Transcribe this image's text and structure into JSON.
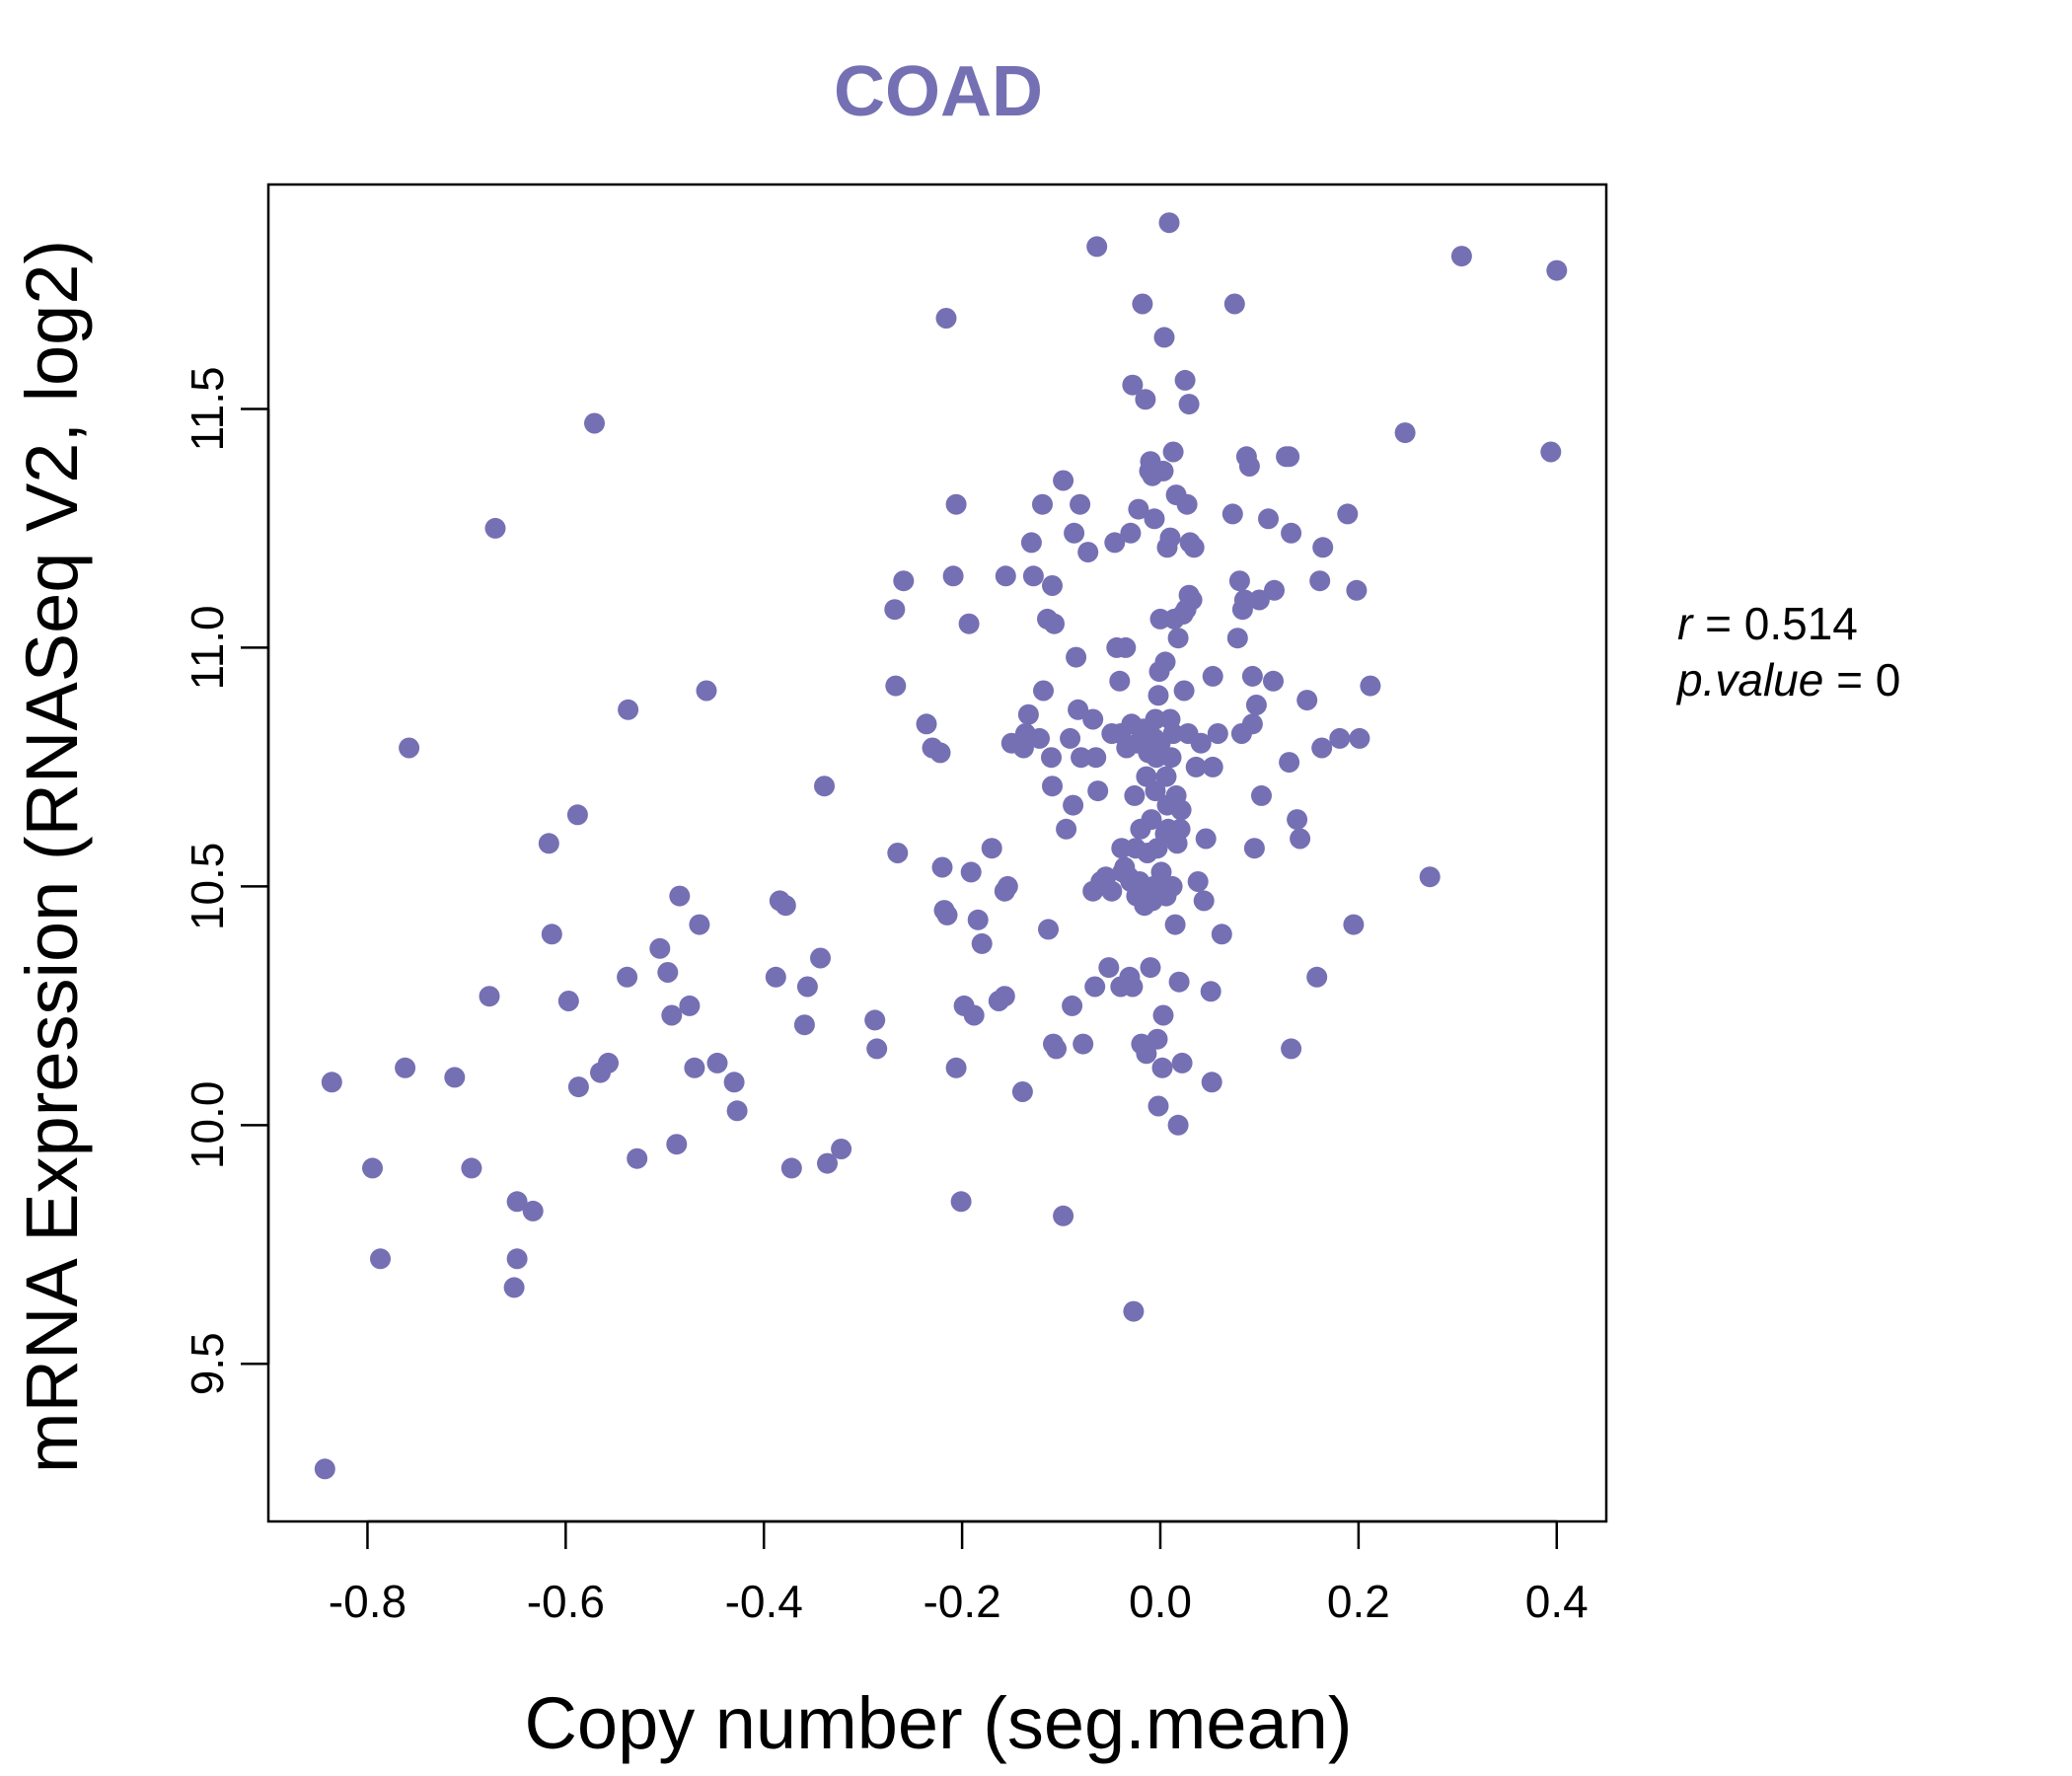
{
  "colors": {
    "accent": "#7570B3",
    "axis": "#000000",
    "background": "#FFFFFF"
  },
  "chart_data": {
    "type": "scatter",
    "title": "COAD",
    "xlabel": "Copy number (seg.mean)",
    "ylabel": "mRNA Expression (RNASeq V2, log2)",
    "xlim": [
      -0.9,
      0.45
    ],
    "ylim": [
      9.17,
      11.97
    ],
    "x_ticks": [
      -0.8,
      -0.6,
      -0.4,
      -0.2,
      0.0,
      0.2,
      0.4
    ],
    "x_tick_labels": [
      "-0.8",
      "-0.6",
      "-0.4",
      "-0.2",
      "0.0",
      "0.2",
      "0.4"
    ],
    "y_ticks": [
      9.5,
      10.0,
      10.5,
      11.0,
      11.5
    ],
    "y_tick_labels": [
      "9.5",
      "10.0",
      "10.5",
      "11.0",
      "11.5"
    ],
    "grid": false,
    "stats": {
      "r_label": "r",
      "r_value": "0.514",
      "p_label": "p.value",
      "p_value": "0"
    },
    "points": [
      [
        -0.843,
        9.28
      ],
      [
        -0.836,
        10.09
      ],
      [
        -0.795,
        9.91
      ],
      [
        -0.787,
        9.72
      ],
      [
        -0.762,
        10.12
      ],
      [
        -0.758,
        10.79
      ],
      [
        -0.712,
        10.1
      ],
      [
        -0.695,
        9.91
      ],
      [
        -0.677,
        10.27
      ],
      [
        -0.671,
        11.25
      ],
      [
        -0.652,
        9.66
      ],
      [
        -0.649,
        9.72
      ],
      [
        -0.649,
        9.84
      ],
      [
        -0.633,
        9.82
      ],
      [
        -0.617,
        10.59
      ],
      [
        -0.614,
        10.4
      ],
      [
        -0.597,
        10.26
      ],
      [
        -0.588,
        10.65
      ],
      [
        -0.587,
        10.08
      ],
      [
        -0.571,
        11.47
      ],
      [
        -0.565,
        10.11
      ],
      [
        -0.557,
        10.13
      ],
      [
        -0.538,
        10.31
      ],
      [
        -0.537,
        10.87
      ],
      [
        -0.528,
        9.93
      ],
      [
        -0.505,
        10.37
      ],
      [
        -0.497,
        10.32
      ],
      [
        -0.493,
        10.23
      ],
      [
        -0.488,
        9.96
      ],
      [
        -0.485,
        10.48
      ],
      [
        -0.475,
        10.25
      ],
      [
        -0.47,
        10.12
      ],
      [
        -0.465,
        10.42
      ],
      [
        -0.458,
        10.91
      ],
      [
        -0.447,
        10.13
      ],
      [
        -0.43,
        10.09
      ],
      [
        -0.427,
        10.03
      ],
      [
        -0.388,
        10.31
      ],
      [
        -0.384,
        10.47
      ],
      [
        -0.378,
        10.46
      ],
      [
        -0.372,
        9.91
      ],
      [
        -0.359,
        10.21
      ],
      [
        -0.356,
        10.29
      ],
      [
        -0.343,
        10.35
      ],
      [
        -0.339,
        10.71
      ],
      [
        -0.336,
        9.92
      ],
      [
        -0.322,
        9.95
      ],
      [
        -0.288,
        10.22
      ],
      [
        -0.286,
        10.16
      ],
      [
        -0.268,
        11.08
      ],
      [
        -0.267,
        10.92
      ],
      [
        -0.265,
        10.57
      ],
      [
        -0.259,
        11.14
      ],
      [
        -0.236,
        10.84
      ],
      [
        -0.23,
        10.79
      ],
      [
        -0.222,
        10.78
      ],
      [
        -0.22,
        10.54
      ],
      [
        -0.218,
        10.45
      ],
      [
        -0.215,
        10.44
      ],
      [
        -0.216,
        11.69
      ],
      [
        -0.209,
        11.15
      ],
      [
        -0.206,
        11.3
      ],
      [
        -0.206,
        10.12
      ],
      [
        -0.201,
        9.84
      ],
      [
        -0.198,
        10.25
      ],
      [
        -0.193,
        11.05
      ],
      [
        -0.191,
        10.53
      ],
      [
        -0.188,
        10.23
      ],
      [
        -0.184,
        10.43
      ],
      [
        -0.18,
        10.38
      ],
      [
        -0.17,
        10.58
      ],
      [
        -0.163,
        10.26
      ],
      [
        -0.157,
        10.27
      ],
      [
        -0.157,
        10.49
      ],
      [
        -0.154,
        10.5
      ],
      [
        -0.156,
        11.15
      ],
      [
        -0.15,
        10.8
      ],
      [
        -0.139,
        10.07
      ],
      [
        -0.138,
        10.79
      ],
      [
        -0.136,
        10.82
      ],
      [
        -0.133,
        10.86
      ],
      [
        -0.13,
        11.22
      ],
      [
        -0.128,
        11.15
      ],
      [
        -0.122,
        10.81
      ],
      [
        -0.119,
        11.3
      ],
      [
        -0.118,
        10.91
      ],
      [
        -0.114,
        11.06
      ],
      [
        -0.113,
        10.41
      ],
      [
        -0.11,
        10.77
      ],
      [
        -0.109,
        10.71
      ],
      [
        -0.109,
        11.13
      ],
      [
        -0.108,
        10.17
      ],
      [
        -0.107,
        11.05
      ],
      [
        -0.105,
        10.16
      ],
      [
        -0.098,
        11.35
      ],
      [
        -0.098,
        9.81
      ],
      [
        -0.095,
        10.62
      ],
      [
        -0.091,
        10.81
      ],
      [
        -0.089,
        10.25
      ],
      [
        -0.088,
        10.67
      ],
      [
        -0.087,
        11.24
      ],
      [
        -0.085,
        10.98
      ],
      [
        -0.083,
        10.87
      ],
      [
        -0.081,
        11.3
      ],
      [
        -0.08,
        10.77
      ],
      [
        -0.078,
        10.17
      ],
      [
        -0.073,
        11.2
      ],
      [
        -0.068,
        10.85
      ],
      [
        -0.068,
        10.49
      ],
      [
        -0.066,
        10.29
      ],
      [
        -0.065,
        10.77
      ],
      [
        -0.064,
        11.84
      ],
      [
        -0.063,
        10.7
      ],
      [
        -0.06,
        10.51
      ],
      [
        -0.055,
        10.52
      ],
      [
        -0.052,
        10.33
      ],
      [
        -0.049,
        10.82
      ],
      [
        -0.049,
        10.49
      ],
      [
        -0.046,
        11.22
      ],
      [
        -0.044,
        11.0
      ],
      [
        -0.041,
        10.93
      ],
      [
        -0.04,
        10.29
      ],
      [
        -0.04,
        10.82
      ],
      [
        -0.039,
        10.58
      ],
      [
        -0.038,
        10.53
      ],
      [
        -0.036,
        10.54
      ],
      [
        -0.035,
        11.0
      ],
      [
        -0.034,
        10.79
      ],
      [
        -0.032,
        10.52
      ],
      [
        -0.031,
        10.31
      ],
      [
        -0.03,
        10.51
      ],
      [
        -0.03,
        11.24
      ],
      [
        -0.029,
        10.84
      ],
      [
        -0.028,
        11.55
      ],
      [
        -0.028,
        10.29
      ],
      [
        -0.027,
        9.61
      ],
      [
        -0.026,
        10.69
      ],
      [
        -0.025,
        10.58
      ],
      [
        -0.024,
        10.48
      ],
      [
        -0.023,
        10.8
      ],
      [
        -0.022,
        11.29
      ],
      [
        -0.021,
        10.51
      ],
      [
        -0.02,
        10.62
      ],
      [
        -0.019,
        10.17
      ],
      [
        -0.018,
        11.72
      ],
      [
        -0.017,
        10.83
      ],
      [
        -0.016,
        10.46
      ],
      [
        -0.015,
        11.52
      ],
      [
        -0.014,
        10.73
      ],
      [
        -0.014,
        10.15
      ],
      [
        -0.013,
        10.57
      ],
      [
        -0.012,
        10.78
      ],
      [
        -0.011,
        11.37
      ],
      [
        -0.01,
        11.39
      ],
      [
        -0.01,
        10.33
      ],
      [
        -0.009,
        10.64
      ],
      [
        -0.008,
        11.36
      ],
      [
        -0.008,
        10.47
      ],
      [
        -0.007,
        10.5
      ],
      [
        -0.006,
        11.27
      ],
      [
        -0.006,
        10.81
      ],
      [
        -0.005,
        10.7
      ],
      [
        -0.005,
        10.85
      ],
      [
        -0.004,
        10.77
      ],
      [
        -0.003,
        10.58
      ],
      [
        -0.003,
        10.18
      ],
      [
        -0.002,
        10.9
      ],
      [
        -0.002,
        10.04
      ],
      [
        -0.001,
        10.95
      ],
      [
        0.0,
        11.06
      ],
      [
        0.0,
        10.8
      ],
      [
        0.001,
        10.53
      ],
      [
        0.002,
        10.12
      ],
      [
        0.003,
        10.23
      ],
      [
        0.003,
        11.37
      ],
      [
        0.004,
        11.65
      ],
      [
        0.005,
        10.61
      ],
      [
        0.005,
        10.97
      ],
      [
        0.006,
        10.73
      ],
      [
        0.006,
        10.48
      ],
      [
        0.007,
        11.21
      ],
      [
        0.007,
        10.67
      ],
      [
        0.008,
        10.62
      ],
      [
        0.009,
        11.89
      ],
      [
        0.01,
        10.85
      ],
      [
        0.01,
        11.23
      ],
      [
        0.011,
        10.77
      ],
      [
        0.012,
        10.5
      ],
      [
        0.013,
        11.41
      ],
      [
        0.013,
        10.82
      ],
      [
        0.014,
        11.06
      ],
      [
        0.015,
        10.42
      ],
      [
        0.016,
        10.69
      ],
      [
        0.016,
        11.32
      ],
      [
        0.017,
        10.59
      ],
      [
        0.018,
        11.02
      ],
      [
        0.018,
        10.0
      ],
      [
        0.019,
        10.3
      ],
      [
        0.02,
        10.62
      ],
      [
        0.021,
        10.66
      ],
      [
        0.022,
        10.13
      ],
      [
        0.023,
        11.07
      ],
      [
        0.024,
        10.91
      ],
      [
        0.025,
        11.56
      ],
      [
        0.026,
        11.08
      ],
      [
        0.027,
        11.3
      ],
      [
        0.028,
        10.82
      ],
      [
        0.029,
        11.11
      ],
      [
        0.029,
        11.51
      ],
      [
        0.03,
        11.22
      ],
      [
        0.032,
        11.1
      ],
      [
        0.034,
        11.21
      ],
      [
        0.036,
        10.75
      ],
      [
        0.038,
        10.51
      ],
      [
        0.041,
        10.8
      ],
      [
        0.044,
        10.47
      ],
      [
        0.046,
        10.6
      ],
      [
        0.051,
        10.28
      ],
      [
        0.052,
        10.09
      ],
      [
        0.053,
        10.94
      ],
      [
        0.053,
        10.75
      ],
      [
        0.058,
        10.82
      ],
      [
        0.062,
        10.4
      ],
      [
        0.073,
        11.28
      ],
      [
        0.075,
        11.72
      ],
      [
        0.078,
        11.02
      ],
      [
        0.08,
        11.14
      ],
      [
        0.082,
        10.82
      ],
      [
        0.083,
        11.08
      ],
      [
        0.085,
        11.1
      ],
      [
        0.087,
        11.4
      ],
      [
        0.09,
        11.38
      ],
      [
        0.093,
        10.84
      ],
      [
        0.093,
        10.94
      ],
      [
        0.095,
        10.58
      ],
      [
        0.097,
        10.88
      ],
      [
        0.1,
        11.1
      ],
      [
        0.102,
        10.69
      ],
      [
        0.109,
        11.27
      ],
      [
        0.114,
        10.93
      ],
      [
        0.115,
        11.12
      ],
      [
        0.127,
        11.4
      ],
      [
        0.13,
        11.4
      ],
      [
        0.13,
        10.76
      ],
      [
        0.132,
        11.24
      ],
      [
        0.132,
        10.16
      ],
      [
        0.138,
        10.64
      ],
      [
        0.141,
        10.6
      ],
      [
        0.148,
        10.89
      ],
      [
        0.158,
        10.31
      ],
      [
        0.161,
        11.14
      ],
      [
        0.163,
        10.79
      ],
      [
        0.164,
        11.21
      ],
      [
        0.181,
        10.81
      ],
      [
        0.189,
        11.28
      ],
      [
        0.195,
        10.42
      ],
      [
        0.198,
        11.12
      ],
      [
        0.201,
        10.81
      ],
      [
        0.212,
        10.92
      ],
      [
        0.247,
        11.45
      ],
      [
        0.272,
        10.52
      ],
      [
        0.304,
        11.82
      ],
      [
        0.394,
        11.41
      ],
      [
        0.4,
        11.79
      ]
    ]
  }
}
